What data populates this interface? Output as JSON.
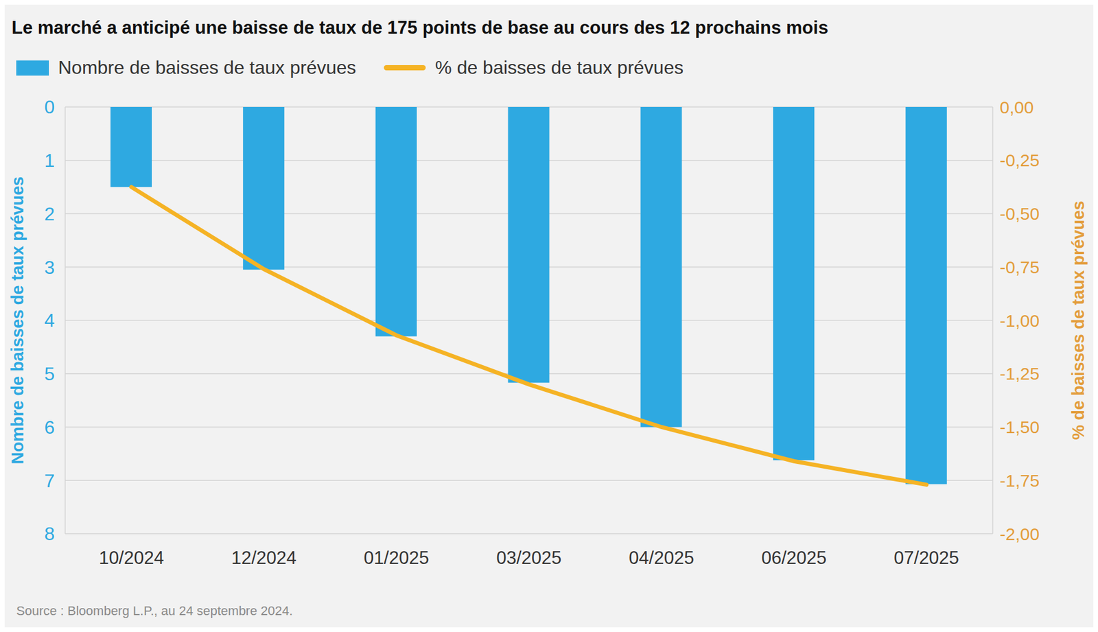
{
  "chart_data": {
    "type": "bar",
    "title": "Le marché a anticipé une baisse de taux de 175 points de base au cours des 12 prochains mois",
    "source": "Source : Bloomberg L.P., au 24 septembre 2024.",
    "categories": [
      "10/2024",
      "12/2024",
      "01/2025",
      "03/2025",
      "04/2025",
      "06/2025",
      "07/2025"
    ],
    "series": [
      {
        "name": "Nombre de baisses de taux prévues",
        "type": "bar",
        "color": "#2ea9e1",
        "values": [
          1.5,
          3.05,
          4.3,
          5.17,
          6.0,
          6.62,
          7.07
        ]
      },
      {
        "name": "% de baisses de taux prévues",
        "type": "line",
        "axis": "y2",
        "color": "#f5b325",
        "values": [
          -0.375,
          -0.76,
          -1.07,
          -1.3,
          -1.5,
          -1.66,
          -1.77
        ]
      }
    ],
    "ylabel": "Nombre de baisses de taux prévues",
    "y2label": "% de baisses de taux prévues",
    "ylim": [
      8,
      0
    ],
    "yticks": [
      0,
      1,
      2,
      3,
      4,
      5,
      6,
      7,
      8
    ],
    "y2lim": [
      -2,
      0
    ],
    "y2ticks": [
      {
        "value": 0,
        "label": "0,00"
      },
      {
        "value": -0.25,
        "label": "-0,25"
      },
      {
        "value": -0.5,
        "label": "-0,50"
      },
      {
        "value": -0.75,
        "label": "-0,75"
      },
      {
        "value": -1,
        "label": "-1,00"
      },
      {
        "value": -1.25,
        "label": "-1,25"
      },
      {
        "value": -1.5,
        "label": "-1,50"
      },
      {
        "value": -1.75,
        "label": "-1,75"
      },
      {
        "value": -2,
        "label": "-2,00"
      }
    ],
    "grid": true,
    "legend": "top left"
  }
}
